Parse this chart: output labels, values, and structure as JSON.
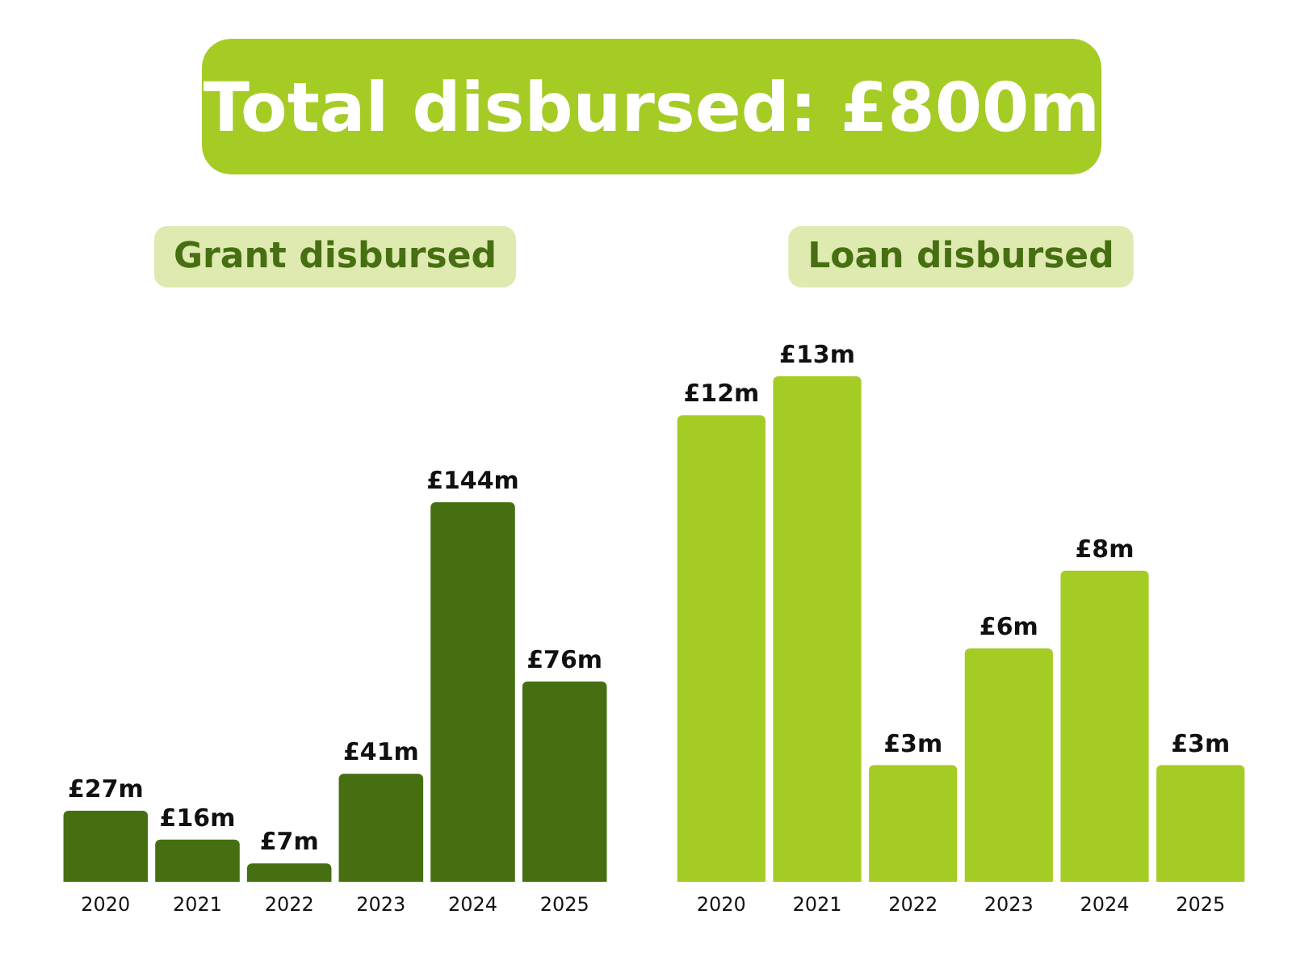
{
  "chart_data": [
    {
      "type": "other",
      "title": "Total disbursed: £800m"
    },
    {
      "type": "bar",
      "title": "Grant disbursed",
      "categories": [
        "2020",
        "2021",
        "2022",
        "2023",
        "2024",
        "2025"
      ],
      "values": [
        27,
        16,
        7,
        41,
        144,
        76
      ],
      "value_labels": [
        "£27m",
        "£16m",
        "£7m",
        "£41m",
        "£144m",
        "£76m"
      ],
      "color": "#466f12"
    },
    {
      "type": "bar",
      "title": "Loan disbursed",
      "categories": [
        "2020",
        "2021",
        "2022",
        "2023",
        "2024",
        "2025"
      ],
      "values": [
        12,
        13,
        3,
        6,
        8,
        3
      ],
      "value_labels": [
        "£12m",
        "£13m",
        "£3m",
        "£6m",
        "£8m",
        "£3m"
      ],
      "color": "#a5cb25"
    }
  ]
}
